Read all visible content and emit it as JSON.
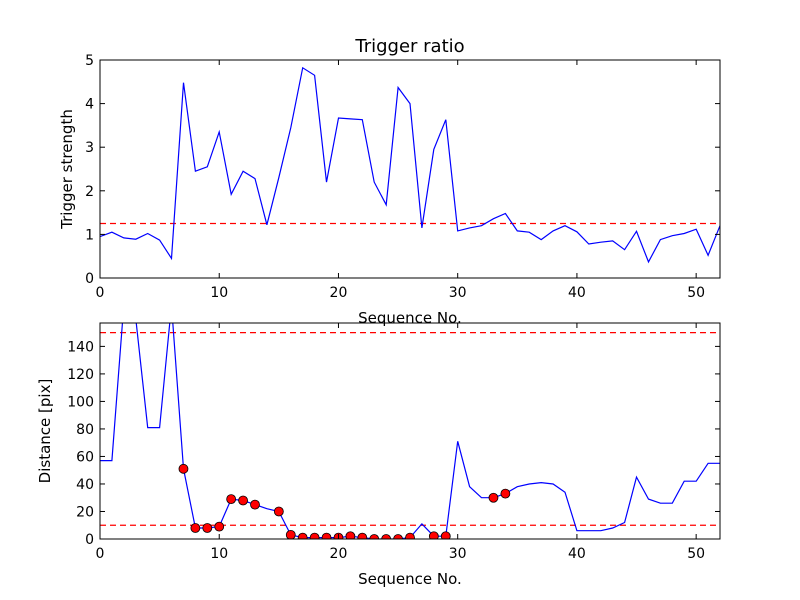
{
  "chart_data": [
    {
      "type": "line",
      "title": "Trigger ratio",
      "xlabel": "Sequence No.",
      "ylabel": "Trigger strength",
      "xlim": [
        0,
        52
      ],
      "ylim": [
        0,
        5
      ],
      "xticks": [
        0,
        10,
        20,
        30,
        40,
        50
      ],
      "yticks": [
        0,
        1,
        2,
        3,
        4,
        5
      ],
      "series": [
        {
          "color": "#0000ff",
          "x": [
            0,
            1,
            2,
            3,
            4,
            5,
            6,
            7,
            8,
            9,
            10,
            11,
            12,
            13,
            14,
            15,
            16,
            17,
            18,
            19,
            20,
            21,
            22,
            23,
            24,
            25,
            26,
            27,
            28,
            29,
            30,
            31,
            32,
            33,
            34,
            35,
            36,
            37,
            38,
            39,
            40,
            41,
            42,
            43,
            44,
            45,
            46,
            47,
            48,
            49,
            50,
            51,
            52
          ],
          "y": [
            0.95,
            1.05,
            0.92,
            0.89,
            1.02,
            0.87,
            0.45,
            4.48,
            2.45,
            2.55,
            3.35,
            1.92,
            2.45,
            2.28,
            1.22,
            2.3,
            3.45,
            4.82,
            4.65,
            2.2,
            3.67,
            3.65,
            3.63,
            2.2,
            1.68,
            4.37,
            4.0,
            1.15,
            2.95,
            3.63,
            1.08,
            1.15,
            1.2,
            1.36,
            1.48,
            1.08,
            1.05,
            0.88,
            1.08,
            1.2,
            1.06,
            0.78,
            0.82,
            0.85,
            0.65,
            1.07,
            0.37,
            0.88,
            0.97,
            1.02,
            1.12,
            0.52,
            1.2
          ]
        }
      ],
      "threshold": {
        "y": 1.25,
        "color": "#ff0000",
        "style": "dashed"
      }
    },
    {
      "type": "line",
      "title": "",
      "xlabel": "Sequence No.",
      "ylabel": "Distance [pix]",
      "xlim": [
        0,
        52
      ],
      "ylim": [
        0,
        157
      ],
      "xticks": [
        0,
        10,
        20,
        30,
        40,
        50
      ],
      "yticks": [
        0,
        20,
        40,
        60,
        80,
        100,
        120,
        140
      ],
      "series": [
        {
          "color": "#0000ff",
          "x": [
            0,
            1,
            2,
            3,
            4,
            5,
            6,
            7,
            8,
            9,
            10,
            11,
            12,
            13,
            14,
            15,
            16,
            17,
            18,
            19,
            20,
            21,
            22,
            23,
            24,
            25,
            26,
            27,
            28,
            29,
            30,
            31,
            32,
            33,
            34,
            35,
            36,
            37,
            38,
            39,
            40,
            41,
            42,
            43,
            44,
            45,
            46,
            47,
            48,
            49,
            50,
            51,
            52
          ],
          "y": [
            57,
            57,
            170,
            160,
            81,
            81,
            170,
            51,
            8,
            8,
            9,
            29,
            28,
            25,
            22,
            20,
            3,
            1,
            1,
            1,
            1,
            2,
            1,
            0,
            0,
            0,
            1,
            11,
            2,
            2,
            71,
            38,
            30,
            30,
            33,
            38,
            40,
            41,
            40,
            34,
            6,
            6,
            6,
            8,
            12,
            45,
            29,
            26,
            26,
            42,
            42,
            55,
            55
          ]
        }
      ],
      "markers": {
        "color": "#ff0000",
        "edge": "#000000",
        "x": [
          7,
          8,
          9,
          10,
          11,
          12,
          13,
          15,
          16,
          17,
          18,
          19,
          20,
          21,
          22,
          23,
          24,
          25,
          26,
          28,
          29,
          33,
          34
        ],
        "y": [
          51,
          8,
          8,
          9,
          29,
          28,
          25,
          20,
          3,
          1,
          1,
          1,
          1,
          2,
          1,
          0,
          0,
          0,
          1,
          2,
          2,
          30,
          33
        ]
      },
      "thresholds": [
        {
          "y": 150,
          "color": "#ff0000",
          "style": "dashed"
        },
        {
          "y": 10,
          "color": "#ff0000",
          "style": "dashed"
        }
      ]
    }
  ]
}
